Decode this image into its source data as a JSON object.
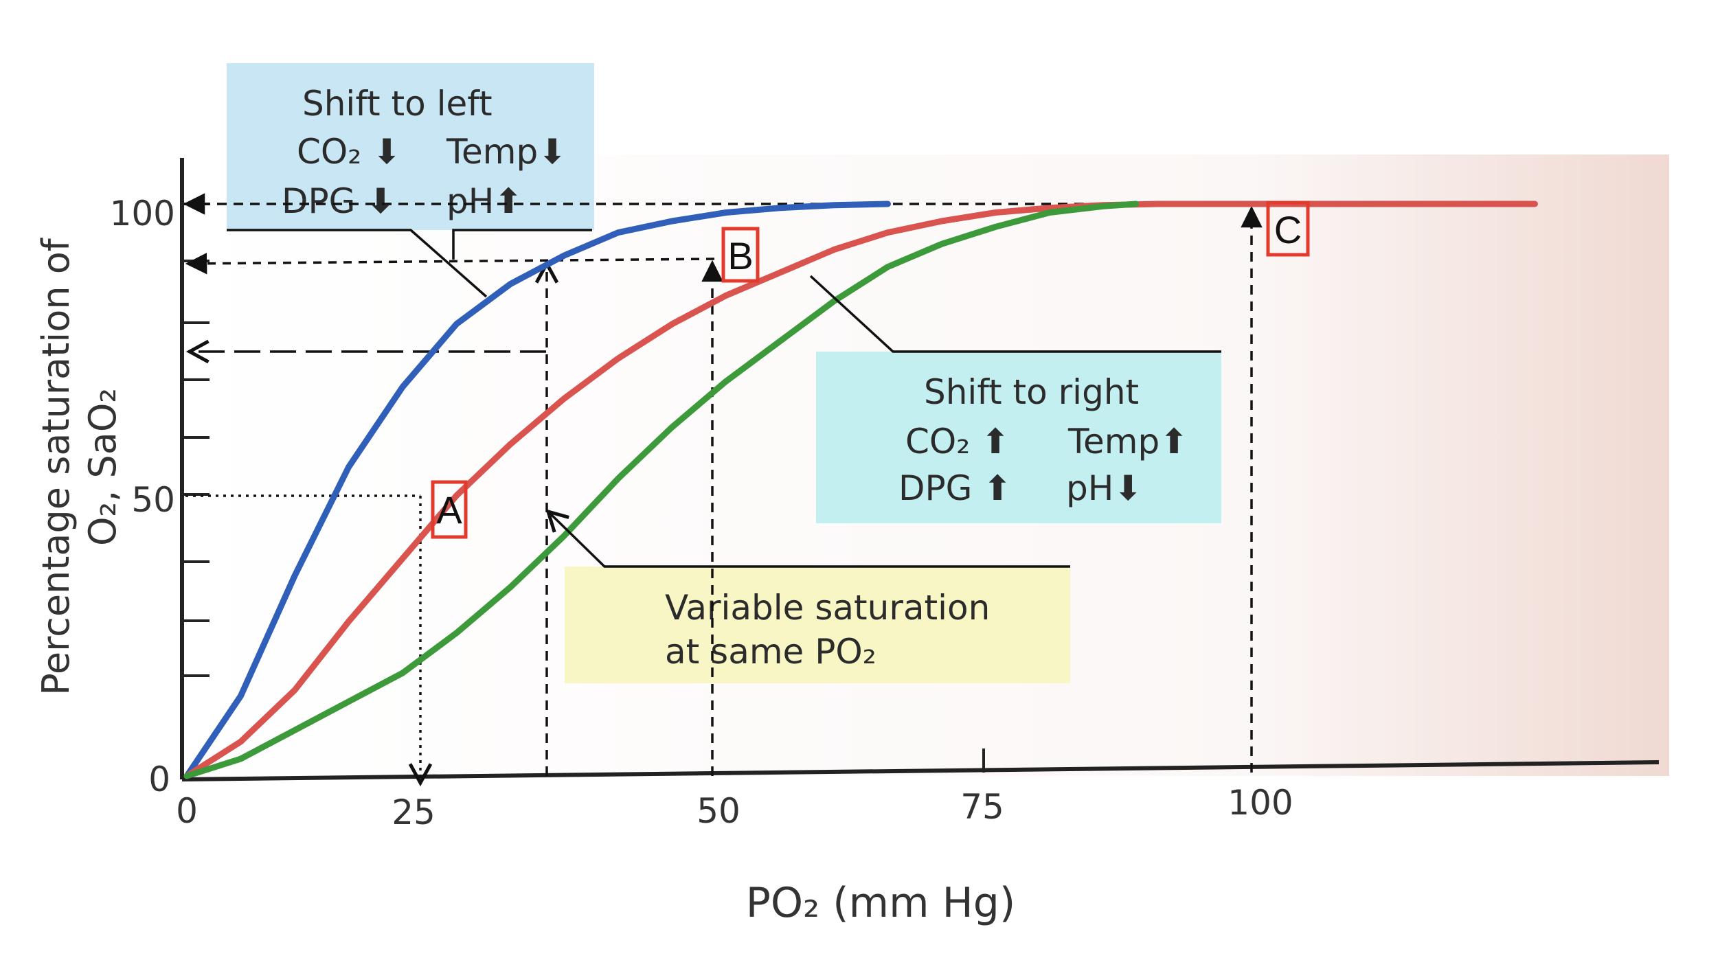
{
  "chart_data": {
    "type": "line",
    "xlabel": "PO₂ (mm Hg)",
    "ylabel_line1": "Percentage saturation of",
    "ylabel_line2": "O₂, SaO₂",
    "xlim": [
      0,
      138
    ],
    "ylim": [
      0,
      100
    ],
    "x_ticks": [
      "0",
      "25",
      "50",
      "75",
      "100"
    ],
    "y_ticks": [
      "0",
      "50",
      "100"
    ],
    "series": [
      {
        "color": "#2f5fb8",
        "x": [
          0,
          5,
          10,
          15,
          20,
          25,
          30,
          35,
          40,
          45,
          50,
          55,
          60,
          65
        ],
        "y": [
          0,
          14,
          35,
          54,
          68,
          79,
          86,
          91,
          95,
          97,
          98.5,
          99.3,
          99.8,
          100
        ]
      },
      {
        "color": "#d9534f",
        "x": [
          0,
          5,
          10,
          15,
          20,
          25,
          30,
          35,
          40,
          45,
          50,
          55,
          60,
          65,
          70,
          75,
          80,
          85,
          90,
          95,
          100,
          110,
          125
        ],
        "y": [
          0,
          6,
          15,
          27,
          38,
          49,
          58,
          66,
          73,
          79,
          84,
          88,
          92,
          95,
          97,
          98.5,
          99.3,
          99.8,
          100,
          100,
          100,
          100,
          100
        ]
      },
      {
        "color": "#3d9a3a",
        "x": [
          0,
          5,
          10,
          15,
          20,
          25,
          30,
          35,
          40,
          45,
          50,
          55,
          60,
          65,
          70,
          75,
          80,
          85,
          88
        ],
        "y": [
          0,
          3,
          8,
          13,
          18,
          25,
          33,
          42,
          52,
          61,
          69,
          76,
          83,
          89,
          93,
          96,
          98.5,
          99.6,
          100
        ]
      }
    ],
    "boxes": {
      "left": {
        "title": "Shift to left",
        "row1a": "CO₂ ⬇",
        "row1b": "Temp⬇",
        "row2a": "DPG ⬇",
        "row2b": "pH⬆",
        "color": "#c8e6f3"
      },
      "right": {
        "title": "Shift to right",
        "row1a": "CO₂ ⬆",
        "row1b": "Temp⬆",
        "row2a": "DPG ⬆",
        "row2b": "pH⬇",
        "color": "#c4eff1"
      },
      "variable": {
        "line1": "Variable saturation",
        "line2": "at same PO₂",
        "color": "#f7f6c4"
      }
    },
    "markers": [
      {
        "label": "A",
        "color": "#e23b2e"
      },
      {
        "label": "B",
        "color": "#e23b2e"
      },
      {
        "label": "C",
        "color": "#e23b2e"
      }
    ]
  }
}
